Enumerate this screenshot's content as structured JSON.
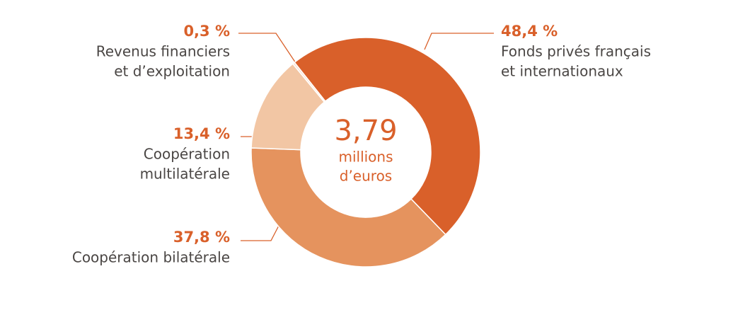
{
  "chart_data": {
    "type": "donut",
    "categories": [
      [
        "Fonds privés français",
        "et internationaux"
      ],
      [
        "Coopération bilatérale"
      ],
      [
        "Coopération",
        "multilatérale"
      ],
      [
        "Revenus financiers",
        "et d’exploitation"
      ]
    ],
    "values": [
      48.4,
      37.8,
      13.4,
      0.3
    ],
    "value_labels": [
      "48,4 %",
      "37,8 %",
      "13,4 %",
      "0,3 %"
    ],
    "colors": [
      "#d9602a",
      "#e5935e",
      "#f2c6a4",
      "#fae3d3"
    ],
    "center_value": "3,79",
    "center_label": [
      "millions",
      "d’euros"
    ]
  }
}
